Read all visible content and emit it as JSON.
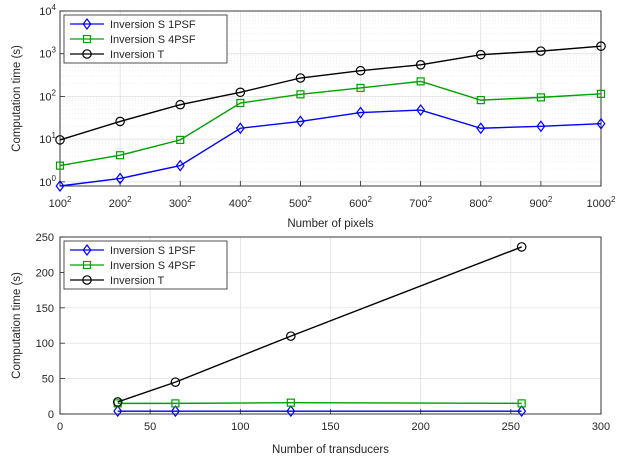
{
  "chart_data": [
    {
      "type": "line",
      "ylabel": "Computation time (s)",
      "xlabel": "Number of pixels",
      "yscale": "log",
      "ylim": [
        0.8,
        10000
      ],
      "ytick_exponents": [
        "0",
        "1",
        "2",
        "3",
        "4"
      ],
      "ytick_base": "10",
      "xtick_bases": [
        "100",
        "200",
        "300",
        "400",
        "500",
        "600",
        "700",
        "800",
        "900",
        "1000"
      ],
      "xtick_exponent": "2",
      "grid": true,
      "legend": "top-left",
      "series": [
        {
          "name": "Inversion S 1PSF",
          "color": "#0000ff",
          "marker": "diamond",
          "values": [
            0.8,
            1.2,
            2.4,
            18,
            26,
            42,
            48,
            18,
            20,
            23
          ]
        },
        {
          "name": "Inversion S 4PSF",
          "color": "#00a000",
          "marker": "square",
          "values": [
            2.4,
            4.2,
            9.6,
            70,
            112,
            158,
            225,
            82,
            95,
            115
          ]
        },
        {
          "name": "Inversion T",
          "color": "#000000",
          "marker": "circle",
          "values": [
            9.6,
            26,
            64,
            125,
            270,
            400,
            550,
            950,
            1150,
            1500
          ]
        }
      ]
    },
    {
      "type": "line",
      "ylabel": "Computation time (s)",
      "xlabel": "Number of transducers",
      "xlim": [
        0,
        300
      ],
      "ylim": [
        0,
        250
      ],
      "xticks": [
        "0",
        "50",
        "100",
        "150",
        "200",
        "250",
        "300"
      ],
      "yticks": [
        "0",
        "50",
        "100",
        "150",
        "200",
        "250"
      ],
      "grid": true,
      "legend": "top-left",
      "series": [
        {
          "name": "Inversion S 1PSF",
          "color": "#0000ff",
          "marker": "diamond",
          "x": [
            32,
            64,
            128,
            256
          ],
          "y": [
            4,
            4,
            4,
            4
          ]
        },
        {
          "name": "Inversion S 4PSF",
          "color": "#00a000",
          "marker": "square",
          "x": [
            32,
            64,
            128,
            256
          ],
          "y": [
            15,
            15,
            16,
            15
          ]
        },
        {
          "name": "Inversion T",
          "color": "#000000",
          "marker": "circle",
          "x": [
            32,
            64,
            128,
            256
          ],
          "y": [
            17,
            45,
            110,
            236
          ]
        }
      ]
    }
  ]
}
